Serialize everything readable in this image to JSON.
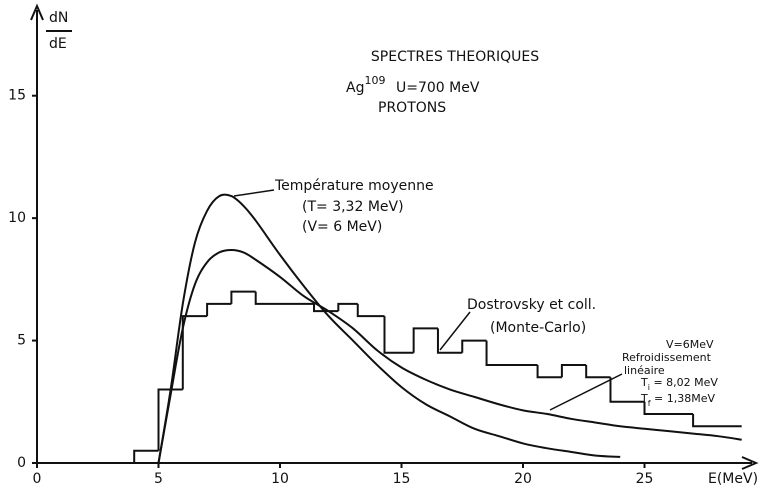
{
  "chart_data": {
    "type": "line",
    "title": "SPECTRES THEORIQUES",
    "target": {
      "symbol": "Ag",
      "mass": "109"
    },
    "energy": "U=700 MeV",
    "particle": "PROTONS",
    "x_label": "E(MeV)",
    "y_label": {
      "numerator": "dN",
      "denominator": "dE"
    },
    "xlim": [
      0,
      29
    ],
    "ylim": [
      0,
      18.5
    ],
    "xticks": [
      0,
      5,
      10,
      15,
      20,
      25
    ],
    "yticks": [
      0,
      5,
      10,
      15
    ],
    "color": "#111111",
    "x": [
      5,
      5.5,
      6,
      6.5,
      7,
      7.5,
      8,
      8.5,
      9,
      10,
      11,
      12,
      13,
      14,
      15,
      16,
      17,
      18,
      19,
      20,
      21,
      22,
      23,
      24,
      25,
      26,
      27,
      28,
      29
    ],
    "series": [
      {
        "values": [
          0,
          3,
          6.5,
          9,
          10.3,
          10.9,
          10.9,
          10.5,
          9.9,
          8.5,
          7.2,
          6,
          5,
          4,
          3.1,
          2.4,
          1.9,
          1.4,
          1.1,
          0.8,
          0.6,
          0.45,
          0.3,
          0.25,
          null,
          null,
          null,
          null,
          null
        ]
      },
      {
        "values": [
          0,
          2.8,
          5.5,
          7.3,
          8.2,
          8.6,
          8.7,
          8.6,
          8.3,
          7.6,
          6.8,
          6.2,
          5.5,
          4.6,
          3.9,
          3.4,
          3,
          2.7,
          2.4,
          2.15,
          2,
          1.8,
          1.65,
          1.5,
          1.4,
          1.3,
          1.2,
          1.1,
          0.95
        ]
      }
    ],
    "histogram": {
      "bins": [
        4,
        5,
        6,
        7,
        8,
        9,
        11.4,
        12.4,
        13.2,
        14.3,
        15.5,
        16.5,
        17.5,
        18.5,
        20.6,
        21.6,
        22.6,
        23.6,
        25,
        27,
        29
      ],
      "counts": [
        0.5,
        3,
        6,
        6.5,
        7,
        6.5,
        6.2,
        6.5,
        6,
        4.5,
        5.5,
        4.5,
        5,
        4,
        3.5,
        4,
        3.5,
        2.5,
        2,
        1.5
      ]
    },
    "annotations": {
      "mean_temperature": "Température moyenne",
      "mean_t": "(T= 3,32 MeV)",
      "mean_v": "(V= 6    MeV)",
      "monte_carlo_1": "Dostrovsky et coll.",
      "monte_carlo_2": "(Monte-Carlo)",
      "cooling_v": "V=6MeV",
      "cooling_1": "Refroidissement",
      "cooling_2": "linéaire",
      "t_initial": {
        "symbol": "T",
        "subscript": "i",
        "value": " = 8,02 MeV"
      },
      "t_final": {
        "symbol": "T",
        "subscript": "f",
        "value": " = 1,38MeV"
      }
    }
  }
}
